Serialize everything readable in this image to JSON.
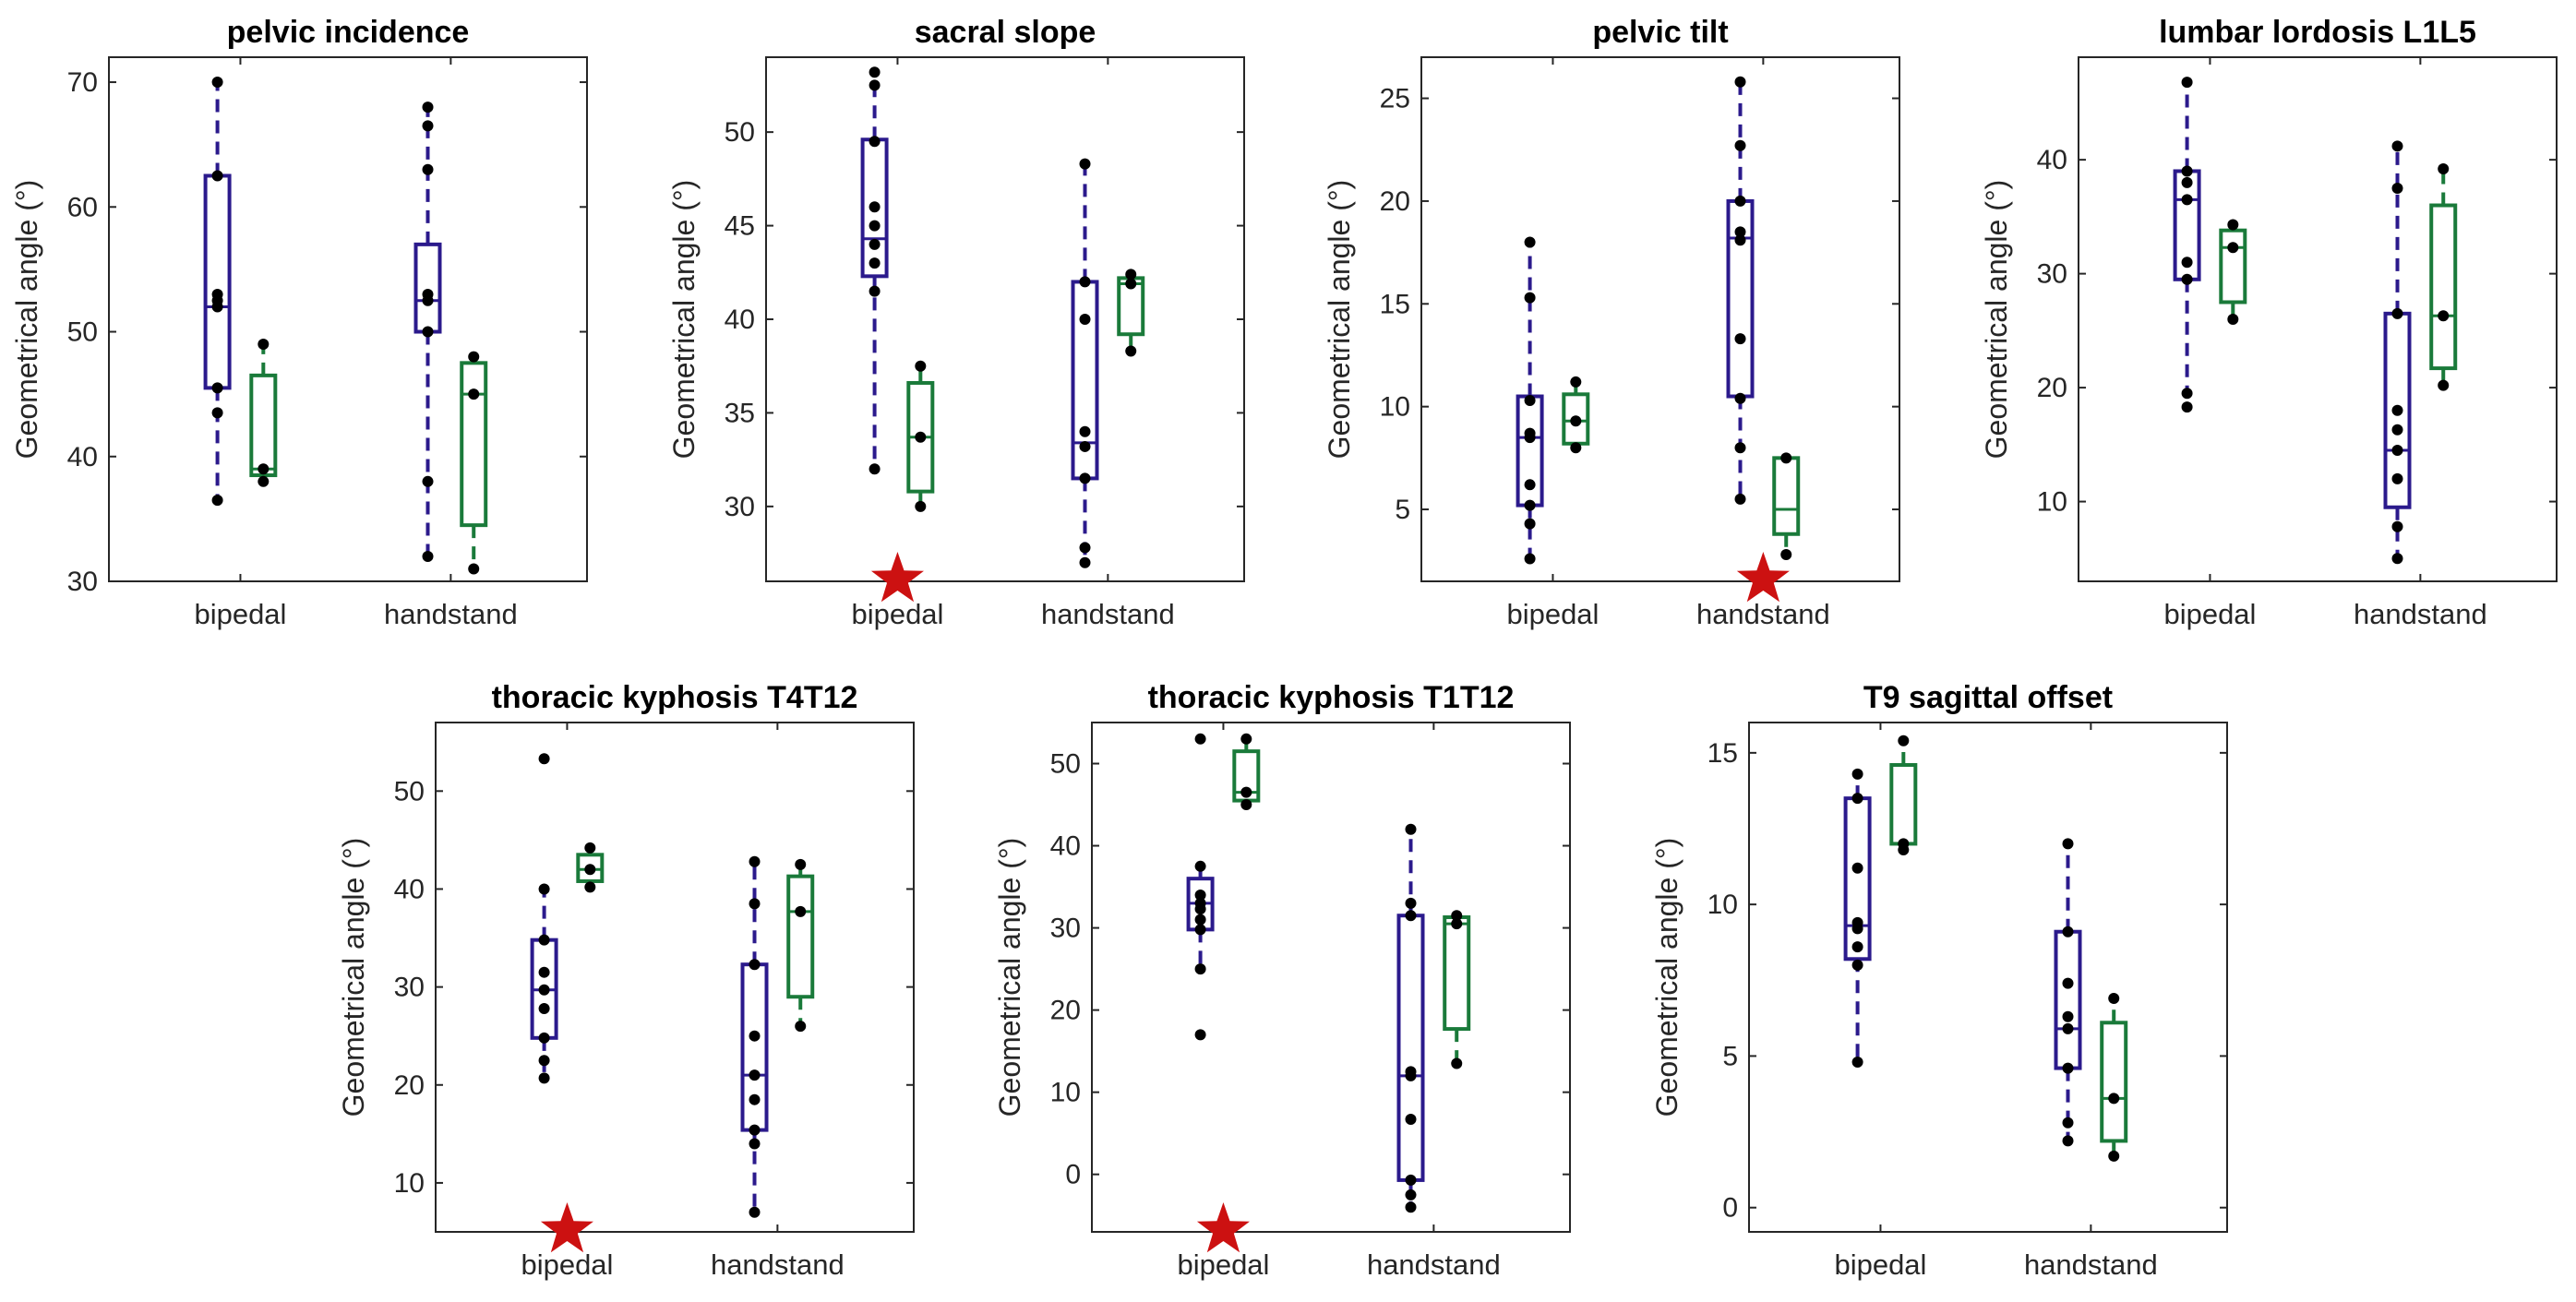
{
  "figure": {
    "colors": {
      "bipedal": "#2b1a8c",
      "handstand": "#1a7a3a",
      "points": "#000000",
      "star": "#cc1111"
    }
  },
  "chart_data": [
    {
      "type": "box",
      "title": "pelvic incidence",
      "ylabel": "Geometrical angle (°)",
      "categories": [
        "bipedal",
        "handstand"
      ],
      "ylim": [
        30,
        72
      ],
      "yticks": [
        30,
        40,
        50,
        60,
        70
      ],
      "groups": [
        {
          "category": "bipedal",
          "series": "blue",
          "stats": {
            "whislo": 36.5,
            "q1": 45.5,
            "med": 52,
            "q3": 62.5,
            "whishi": 70
          },
          "points": [
            70,
            62.5,
            53,
            52.5,
            52,
            45.5,
            43.5,
            36.5
          ]
        },
        {
          "category": "bipedal",
          "series": "green",
          "stats": {
            "whislo": 38,
            "q1": 38.5,
            "med": 39,
            "q3": 46.5,
            "whishi": 49
          },
          "points": [
            49,
            39,
            38
          ]
        },
        {
          "category": "handstand",
          "series": "blue",
          "stats": {
            "whislo": 32,
            "q1": 50,
            "med": 52.5,
            "q3": 57,
            "whishi": 68
          },
          "points": [
            68,
            66.5,
            63,
            53,
            52.5,
            50,
            38,
            32
          ]
        },
        {
          "category": "handstand",
          "series": "green",
          "stats": {
            "whislo": 31,
            "q1": 34.5,
            "med": 45,
            "q3": 47.5,
            "whishi": 48
          },
          "points": [
            48,
            45,
            31
          ]
        }
      ],
      "stars": []
    },
    {
      "type": "box",
      "title": "sacral slope",
      "ylabel": "Geometrical angle (°)",
      "categories": [
        "bipedal",
        "handstand"
      ],
      "ylim": [
        26,
        54
      ],
      "yticks": [
        30,
        35,
        40,
        45,
        50
      ],
      "groups": [
        {
          "category": "bipedal",
          "series": "blue",
          "stats": {
            "whislo": 32,
            "q1": 42.3,
            "med": 44.3,
            "q3": 49.6,
            "whishi": 53.2
          },
          "points": [
            53.2,
            52.5,
            49.5,
            46,
            45,
            44,
            43,
            41.5,
            32
          ]
        },
        {
          "category": "bipedal",
          "series": "green",
          "stats": {
            "whislo": 30,
            "q1": 30.8,
            "med": 33.7,
            "q3": 36.6,
            "whishi": 37.5
          },
          "points": [
            37.5,
            33.7,
            30
          ]
        },
        {
          "category": "handstand",
          "series": "blue",
          "stats": {
            "whislo": 27,
            "q1": 31.5,
            "med": 33.4,
            "q3": 42,
            "whishi": 48.3
          },
          "points": [
            48.3,
            42,
            40,
            34,
            33.2,
            31.5,
            27.8,
            27
          ]
        },
        {
          "category": "handstand",
          "series": "green",
          "stats": {
            "whislo": 38.3,
            "q1": 39.2,
            "med": 41.9,
            "q3": 42.2,
            "whishi": 42.4
          },
          "points": [
            42.4,
            41.9,
            38.3
          ]
        }
      ],
      "stars": [
        "bipedal"
      ]
    },
    {
      "type": "box",
      "title": "pelvic tilt",
      "ylabel": "Geometrical angle (°)",
      "categories": [
        "bipedal",
        "handstand"
      ],
      "ylim": [
        1.5,
        27
      ],
      "yticks": [
        5,
        10,
        15,
        20,
        25
      ],
      "groups": [
        {
          "category": "bipedal",
          "series": "blue",
          "stats": {
            "whislo": 2.6,
            "q1": 5.2,
            "med": 8.5,
            "q3": 10.5,
            "whishi": 18
          },
          "points": [
            18,
            15.3,
            10.3,
            8.7,
            8.5,
            6.2,
            5.2,
            4.3,
            2.6
          ]
        },
        {
          "category": "bipedal",
          "series": "green",
          "stats": {
            "whislo": 8,
            "q1": 8.2,
            "med": 9.3,
            "q3": 10.6,
            "whishi": 11.2
          },
          "points": [
            11.2,
            9.3,
            8
          ]
        },
        {
          "category": "handstand",
          "series": "blue",
          "stats": {
            "whislo": 5.5,
            "q1": 10.5,
            "med": 18.2,
            "q3": 20,
            "whishi": 25.8
          },
          "points": [
            25.8,
            22.7,
            20,
            18.5,
            18.1,
            13.3,
            10.4,
            8,
            5.5
          ]
        },
        {
          "category": "handstand",
          "series": "green",
          "stats": {
            "whislo": 2.8,
            "q1": 3.8,
            "med": 5,
            "q3": 7.5,
            "whishi": 7.5
          },
          "points": [
            7.5,
            2.8
          ]
        }
      ],
      "stars": [
        "handstand"
      ]
    },
    {
      "type": "box",
      "title": "lumbar lordosis L1L5",
      "ylabel": "Geometrical angle (°)",
      "categories": [
        "bipedal",
        "handstand"
      ],
      "ylim": [
        3,
        49
      ],
      "yticks": [
        10,
        20,
        30,
        40
      ],
      "groups": [
        {
          "category": "bipedal",
          "series": "blue",
          "stats": {
            "whislo": 18,
            "q1": 29.5,
            "med": 36.5,
            "q3": 39,
            "whishi": 46.8
          },
          "points": [
            46.8,
            39,
            38,
            36.5,
            31,
            29.5,
            19.5,
            18.3
          ]
        },
        {
          "category": "bipedal",
          "series": "green",
          "stats": {
            "whislo": 26,
            "q1": 27.5,
            "med": 32.3,
            "q3": 33.8,
            "whishi": 34.3
          },
          "points": [
            34.3,
            32.3,
            26
          ]
        },
        {
          "category": "handstand",
          "series": "blue",
          "stats": {
            "whislo": 5,
            "q1": 9.5,
            "med": 14.5,
            "q3": 26.5,
            "whishi": 41.2
          },
          "points": [
            41.2,
            37.5,
            26.5,
            18,
            16.3,
            14.5,
            12,
            7.8,
            5
          ]
        },
        {
          "category": "handstand",
          "series": "green",
          "stats": {
            "whislo": 20.2,
            "q1": 21.7,
            "med": 26.3,
            "q3": 36,
            "whishi": 39.2
          },
          "points": [
            39.2,
            26.3,
            20.2
          ]
        }
      ],
      "stars": []
    },
    {
      "type": "box",
      "title": "thoracic kyphosis T4T12",
      "ylabel": "Geometrical angle (°)",
      "categories": [
        "bipedal",
        "handstand"
      ],
      "ylim": [
        5,
        57
      ],
      "yticks": [
        10,
        20,
        30,
        40,
        50
      ],
      "groups": [
        {
          "category": "bipedal",
          "series": "blue",
          "stats": {
            "whislo": 20.7,
            "q1": 24.8,
            "med": 29.7,
            "q3": 34.8,
            "whishi": 40
          },
          "points": [
            53.3,
            40,
            34.8,
            31.5,
            29.7,
            27.8,
            24.8,
            22.5,
            20.7
          ]
        },
        {
          "category": "bipedal",
          "series": "green",
          "stats": {
            "whislo": 40.2,
            "q1": 40.8,
            "med": 42,
            "q3": 43.5,
            "whishi": 44.2
          },
          "points": [
            44.2,
            42,
            40.2
          ]
        },
        {
          "category": "handstand",
          "series": "blue",
          "stats": {
            "whislo": 7,
            "q1": 15.4,
            "med": 21,
            "q3": 32.3,
            "whishi": 42.8
          },
          "points": [
            42.8,
            38.5,
            32.3,
            25,
            21,
            18.5,
            15.4,
            14,
            7
          ]
        },
        {
          "category": "handstand",
          "series": "green",
          "stats": {
            "whislo": 26,
            "q1": 29,
            "med": 37.7,
            "q3": 41.3,
            "whishi": 42.5
          },
          "points": [
            42.5,
            37.7,
            26
          ]
        }
      ],
      "stars": [
        "bipedal"
      ]
    },
    {
      "type": "box",
      "title": "thoracic kyphosis T1T12",
      "ylabel": "Geometrical angle (°)",
      "categories": [
        "bipedal",
        "handstand"
      ],
      "ylim": [
        -7,
        55
      ],
      "yticks": [
        0,
        10,
        20,
        30,
        40,
        50
      ],
      "groups": [
        {
          "category": "bipedal",
          "series": "blue",
          "stats": {
            "whislo": 25,
            "q1": 29.8,
            "med": 33,
            "q3": 36,
            "whishi": 37.5
          },
          "points": [
            53,
            37.5,
            34,
            33,
            32.3,
            31,
            29.8,
            25,
            17
          ]
        },
        {
          "category": "bipedal",
          "series": "green",
          "stats": {
            "whislo": 45,
            "q1": 45.5,
            "med": 46.5,
            "q3": 51.5,
            "whishi": 53
          },
          "points": [
            53,
            46.5,
            45
          ]
        },
        {
          "category": "handstand",
          "series": "blue",
          "stats": {
            "whislo": -4,
            "q1": -0.7,
            "med": 12,
            "q3": 31.5,
            "whishi": 42
          },
          "points": [
            42,
            33,
            31.5,
            12.5,
            12,
            6.7,
            -0.7,
            -2.5,
            -4
          ]
        },
        {
          "category": "handstand",
          "series": "green",
          "stats": {
            "whislo": 13.5,
            "q1": 17.7,
            "med": 30.5,
            "q3": 31.3,
            "whishi": 31.5
          },
          "points": [
            31.5,
            30.5,
            13.5
          ]
        }
      ],
      "stars": [
        "bipedal"
      ]
    },
    {
      "type": "box",
      "title": "T9 sagittal offset",
      "ylabel": "Geometrical angle (°)",
      "categories": [
        "bipedal",
        "handstand"
      ],
      "ylim": [
        -0.8,
        16
      ],
      "yticks": [
        0,
        5,
        10,
        15
      ],
      "groups": [
        {
          "category": "bipedal",
          "series": "blue",
          "stats": {
            "whislo": 4.8,
            "q1": 8.2,
            "med": 9.3,
            "q3": 13.5,
            "whishi": 14.3
          },
          "points": [
            14.3,
            13.5,
            11.2,
            9.4,
            9.2,
            8.6,
            8,
            4.8
          ]
        },
        {
          "category": "bipedal",
          "series": "green",
          "stats": {
            "whislo": 11.8,
            "q1": 12,
            "med": 12,
            "q3": 14.6,
            "whishi": 15.4
          },
          "points": [
            15.4,
            12,
            11.8
          ]
        },
        {
          "category": "handstand",
          "series": "blue",
          "stats": {
            "whislo": 2.2,
            "q1": 4.6,
            "med": 5.9,
            "q3": 9.1,
            "whishi": 12
          },
          "points": [
            12,
            9.1,
            7.4,
            6.3,
            5.9,
            4.6,
            2.8,
            2.2
          ]
        },
        {
          "category": "handstand",
          "series": "green",
          "stats": {
            "whislo": 1.7,
            "q1": 2.2,
            "med": 3.6,
            "q3": 6.1,
            "whishi": 6.9
          },
          "points": [
            6.9,
            3.6,
            1.7
          ]
        }
      ],
      "stars": []
    }
  ]
}
